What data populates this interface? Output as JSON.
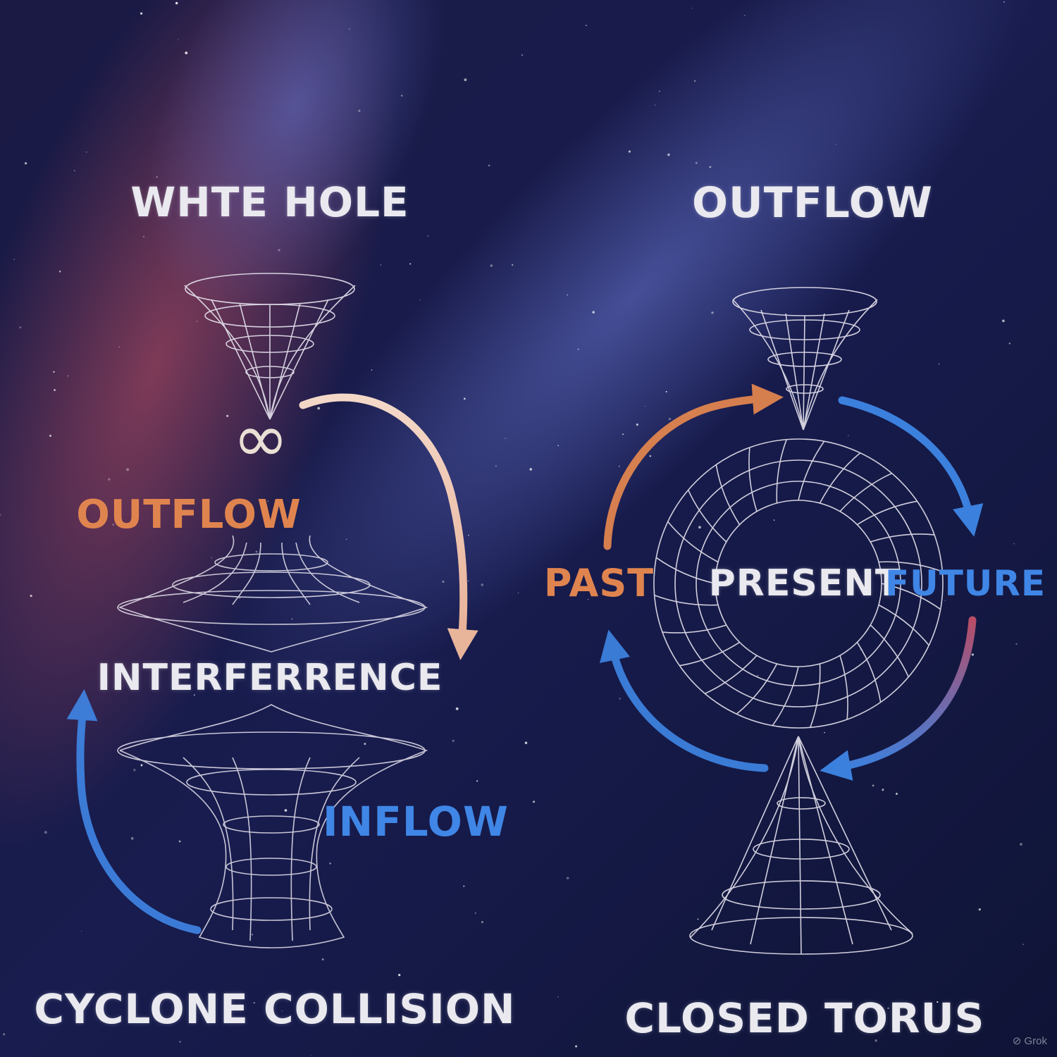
{
  "left_panel": {
    "top_label": "WHTE HOLE",
    "infinity_symbol": "∞",
    "outflow_label": "OUTFLOW",
    "interference_label": "INTERFERRENCE",
    "inflow_label": "INFLOW",
    "bottom_label": "CYCLONE COLLISION"
  },
  "right_panel": {
    "top_label": "OUTFLOW",
    "past_label": "PAST",
    "present_label": "PRESENT",
    "future_label": "FUTURE",
    "bottom_label": "CLOSED TORUS"
  },
  "watermark": "Grok",
  "colors": {
    "background": "#121638",
    "nebula_red": "#8a3a52",
    "nebula_blue": "#5560b8",
    "wire": "#e6e3ee",
    "orange": "#e0844f",
    "blue": "#3f86e6",
    "text": "#e9e9ef"
  }
}
